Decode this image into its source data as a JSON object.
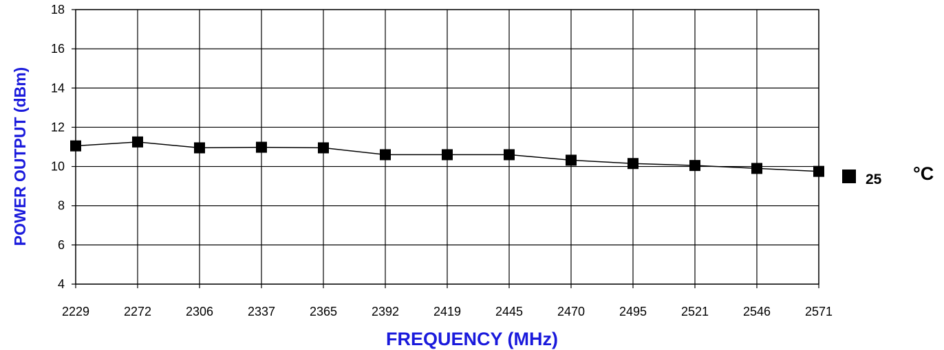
{
  "chart_data": {
    "type": "line",
    "title": "",
    "xlabel": "FREQUENCY (MHz)",
    "ylabel": "POWER OUTPUT (dBm)",
    "categories": [
      "2229",
      "2272",
      "2306",
      "2337",
      "2365",
      "2392",
      "2419",
      "2445",
      "2470",
      "2495",
      "2521",
      "2546",
      "2571"
    ],
    "yticks": [
      "4",
      "6",
      "8",
      "10",
      "12",
      "14",
      "16",
      "18"
    ],
    "ylim": [
      4,
      18
    ],
    "grid": true,
    "legend_position": "right",
    "series": [
      {
        "name": "25",
        "values": [
          11.05,
          11.25,
          10.95,
          10.98,
          10.95,
          10.6,
          10.6,
          10.6,
          10.32,
          10.15,
          10.05,
          9.9,
          9.75
        ]
      }
    ],
    "legend_unit": "°C",
    "colors": {
      "axis_title": "#1a1adc",
      "line": "#000000",
      "marker": "#000000",
      "grid": "#000000"
    }
  }
}
